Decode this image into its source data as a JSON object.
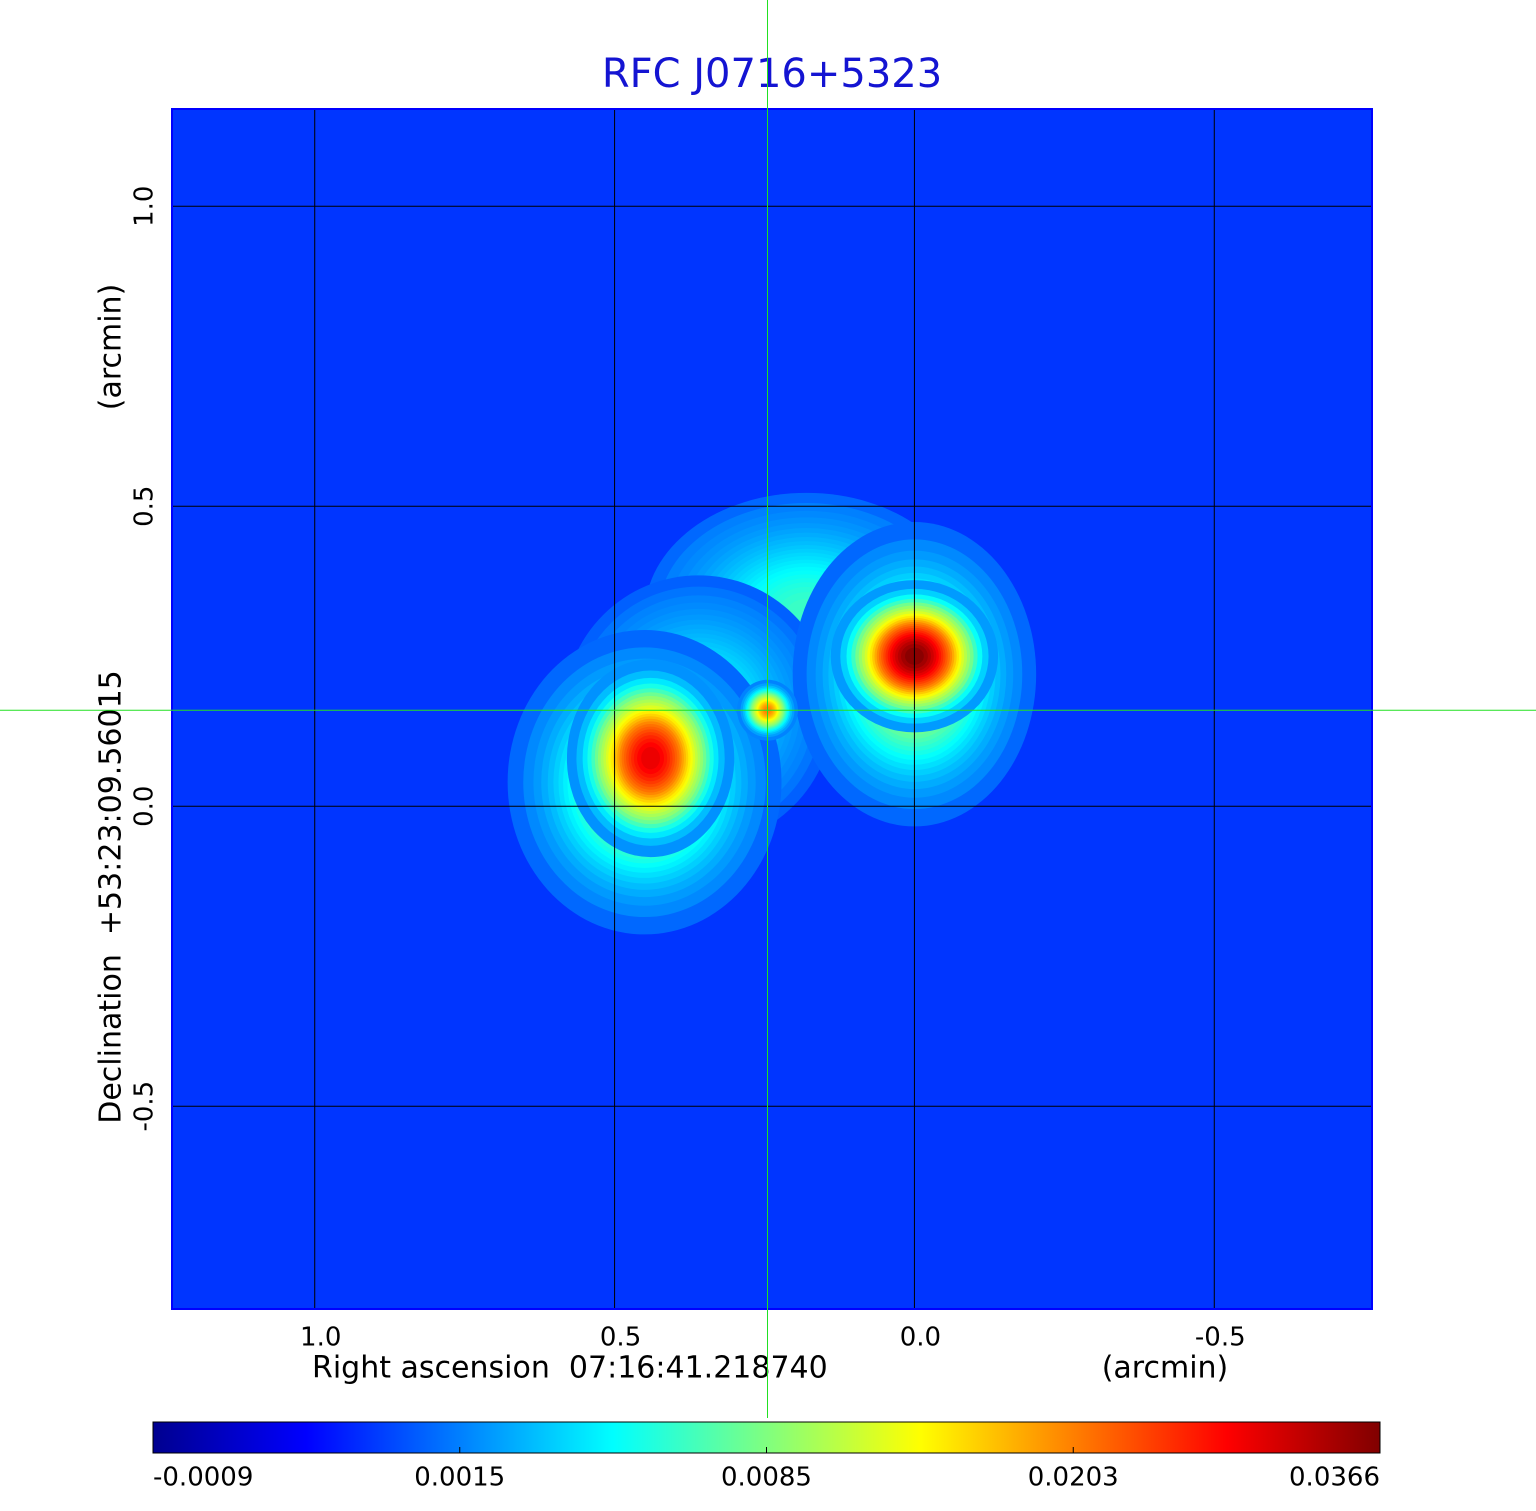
{
  "chart_data": {
    "type": "image",
    "title": "RFC J0716+5323",
    "xlabel": "Right ascension  07:16:41.218740",
    "xunit": "(arcmin)",
    "ylabel": "Declination  +53:23:09.56015",
    "yunit": "(arcmin)",
    "xlim": [
      1.238,
      -0.763
    ],
    "ylim": [
      -0.838,
      1.162
    ],
    "xticks": [
      {
        "value": 1,
        "label": "1.0"
      },
      0.5,
      {
        "value": 0,
        "label": "0.0"
      },
      -0.5
    ],
    "yticks": [
      {
        "value": 1,
        "label": "1.0"
      },
      0.5,
      {
        "value": 0,
        "label": "0.0"
      },
      -0.5
    ],
    "grid": true,
    "crosshair": {
      "x": 0.245,
      "y": 0.16
    },
    "background": 0.0008,
    "colormap": "jet",
    "colorbar_ticks": [
      -0.0009,
      0.0015,
      0.0085,
      0.0203,
      0.0366
    ],
    "sources": [
      {
        "x": 0.18,
        "y": 0.32,
        "peak": 0.006,
        "sx": 0.12,
        "sy": 0.09
      },
      {
        "x": 0.36,
        "y": 0.16,
        "peak": 0.005,
        "sx": 0.1,
        "sy": 0.1
      },
      {
        "x": 0.45,
        "y": 0.04,
        "peak": 0.012,
        "sx": 0.09,
        "sy": 0.1
      },
      {
        "x": 0.0,
        "y": 0.22,
        "peak": 0.012,
        "sx": 0.08,
        "sy": 0.1
      },
      {
        "x": 0.44,
        "y": 0.08,
        "peak": 0.03,
        "sx": 0.055,
        "sy": 0.065
      },
      {
        "x": 0.0,
        "y": 0.25,
        "peak": 0.0366,
        "sx": 0.055,
        "sy": 0.05
      },
      {
        "x": 0.245,
        "y": 0.16,
        "peak": 0.02,
        "sx": 0.02,
        "sy": 0.02
      }
    ]
  }
}
